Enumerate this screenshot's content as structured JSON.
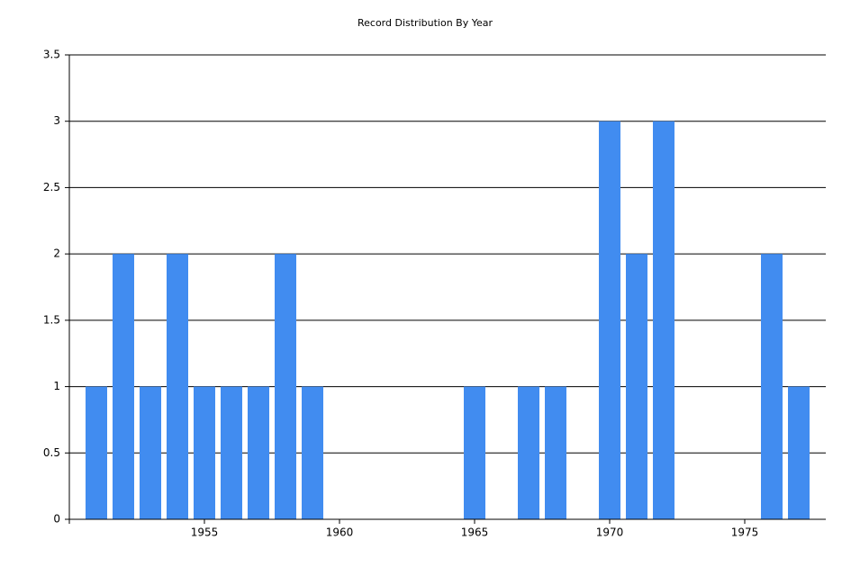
{
  "chart_data": {
    "type": "bar",
    "title": "Record Distribution By Year",
    "x": [
      1951,
      1952,
      1953,
      1954,
      1955,
      1956,
      1957,
      1958,
      1959,
      1965,
      1967,
      1968,
      1970,
      1971,
      1972,
      1976,
      1977
    ],
    "values": [
      1,
      2,
      1,
      2,
      1,
      1,
      1,
      2,
      1,
      1,
      1,
      1,
      3,
      2,
      3,
      2,
      1
    ],
    "color": "#418cf0",
    "xlim": [
      1950,
      1978
    ],
    "xticks": [
      1955,
      1960,
      1965,
      1970,
      1975
    ],
    "ylim": [
      0,
      3.5
    ],
    "yticks": [
      0,
      0.5,
      1,
      1.5,
      2,
      2.5,
      3,
      3.5
    ],
    "grid": true
  }
}
